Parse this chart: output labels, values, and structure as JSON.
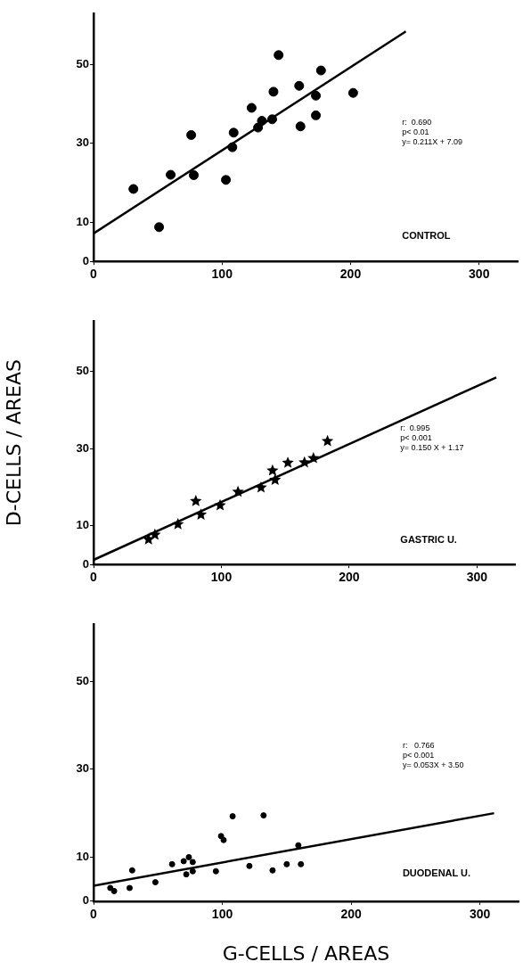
{
  "chart_data": [
    {
      "type": "scatter",
      "xlim": [
        0,
        330
      ],
      "ylim": [
        0,
        63
      ],
      "xticks": [
        0,
        100,
        200,
        300
      ],
      "yticks": [
        0,
        10,
        30,
        50
      ],
      "grid": false,
      "legend": false,
      "annotations": [
        "r:  0.690",
        "p< 0.01",
        "y= 0.211X + 7.09",
        "CONTROL"
      ],
      "series": [
        {
          "type": "scatter",
          "color": "#000000",
          "marker": "circle",
          "x": [
            31,
            51,
            60,
            76,
            78,
            103,
            108,
            109,
            123,
            128,
            131,
            139,
            140,
            144,
            160,
            161,
            173,
            173,
            177,
            202
          ],
          "values": [
            18.4,
            8.7,
            22.0,
            32.1,
            21.9,
            20.7,
            29.0,
            32.7,
            39.0,
            34.0,
            35.7,
            36.1,
            43.1,
            52.4,
            44.6,
            34.3,
            42.1,
            37.1,
            48.5,
            42.8
          ]
        },
        {
          "type": "line",
          "color": "#000000",
          "marker": "none",
          "x": [
            0,
            243
          ],
          "values": [
            7.1,
            58.4
          ]
        }
      ]
    },
    {
      "type": "scatter",
      "xlim": [
        0,
        330
      ],
      "ylim": [
        0,
        63
      ],
      "xticks": [
        0,
        100,
        200,
        300
      ],
      "yticks": [
        0,
        10,
        30,
        50
      ],
      "grid": false,
      "legend": false,
      "ylabel": "D-CELLS / AREAS",
      "annotations": [
        "r:  0.995",
        "p< 0.001",
        "y= 0.150 X + 1.17",
        "GASTRIC U."
      ],
      "series": [
        {
          "type": "scatter",
          "color": "#000000",
          "marker": "star",
          "x": [
            43,
            48,
            66,
            80,
            84,
            99,
            113,
            131,
            140,
            142,
            152,
            165,
            172,
            183
          ],
          "values": [
            6.5,
            7.7,
            10.4,
            16.4,
            12.9,
            15.3,
            18.8,
            19.9,
            24.3,
            21.9,
            26.3,
            26.4,
            27.5,
            31.9
          ]
        },
        {
          "type": "line",
          "color": "#000000",
          "marker": "none",
          "x": [
            0,
            315
          ],
          "values": [
            1.2,
            48.4
          ]
        }
      ]
    },
    {
      "type": "scatter",
      "xlim": [
        0,
        330
      ],
      "ylim": [
        0,
        63
      ],
      "xticks": [
        0,
        100,
        200,
        300
      ],
      "yticks": [
        0,
        10,
        30,
        50
      ],
      "grid": false,
      "legend": false,
      "xlabel": "G-CELLS / AREAS",
      "annotations": [
        "r:   0.766",
        "p< 0.001",
        "y= 0.053X + 3.50",
        "DUODENAL U."
      ],
      "series": [
        {
          "type": "scatter",
          "color": "#000000",
          "marker": "circle",
          "x": [
            13,
            16,
            28,
            30,
            48,
            61,
            70,
            74,
            72,
            77,
            77,
            95,
            99,
            101,
            108,
            121,
            132,
            139,
            150,
            159,
            161
          ],
          "values": [
            3.0,
            2.3,
            3.0,
            7.0,
            4.3,
            8.4,
            9.1,
            10.0,
            6.1,
            8.9,
            6.8,
            6.8,
            14.8,
            13.9,
            19.3,
            8.0,
            19.5,
            7.0,
            8.4,
            12.7,
            8.4
          ]
        },
        {
          "type": "line",
          "color": "#000000",
          "marker": "none",
          "x": [
            0,
            311
          ],
          "values": [
            3.5,
            20.0
          ]
        }
      ]
    }
  ]
}
